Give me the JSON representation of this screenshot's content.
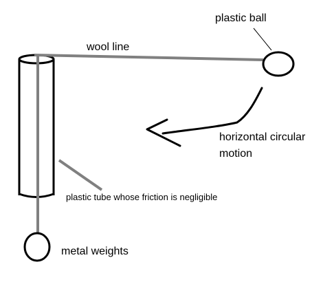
{
  "labels": {
    "plastic_ball": "plastic ball",
    "wool_line": "wool line",
    "motion_line1": "horizontal circular",
    "motion_line2": "motion",
    "tube": "plastic tube whose friction is negligible",
    "weights": "metal weights"
  },
  "colors": {
    "ink": "#000000",
    "string": "#808080",
    "background": "#ffffff"
  }
}
